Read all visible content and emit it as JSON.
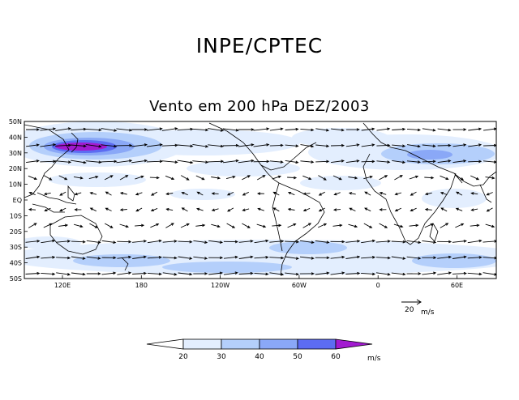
{
  "header": {
    "agency": "INPE/CPTEC"
  },
  "map": {
    "title": "Vento em 200 hPa DEZ/2003",
    "lat_labels": [
      "50N",
      "40N",
      "30N",
      "20N",
      "10N",
      "EQ",
      "10S",
      "20S",
      "30S",
      "40S",
      "50S"
    ],
    "lon_labels": [
      "120E",
      "180",
      "120W",
      "60W",
      "0",
      "60E"
    ],
    "reference_vector": {
      "value": "20",
      "unit": "m/s"
    }
  },
  "colorbar": {
    "labels": [
      "20",
      "30",
      "40",
      "50",
      "60"
    ],
    "unit": "m/s",
    "colors": [
      "#ffffff",
      "#e3eefe",
      "#b4cffb",
      "#8aa8f7",
      "#5c6cf2",
      "#a21ad0"
    ]
  },
  "colors": {
    "jet_core": "#a21ad0",
    "continent_outline": "#000000"
  }
}
